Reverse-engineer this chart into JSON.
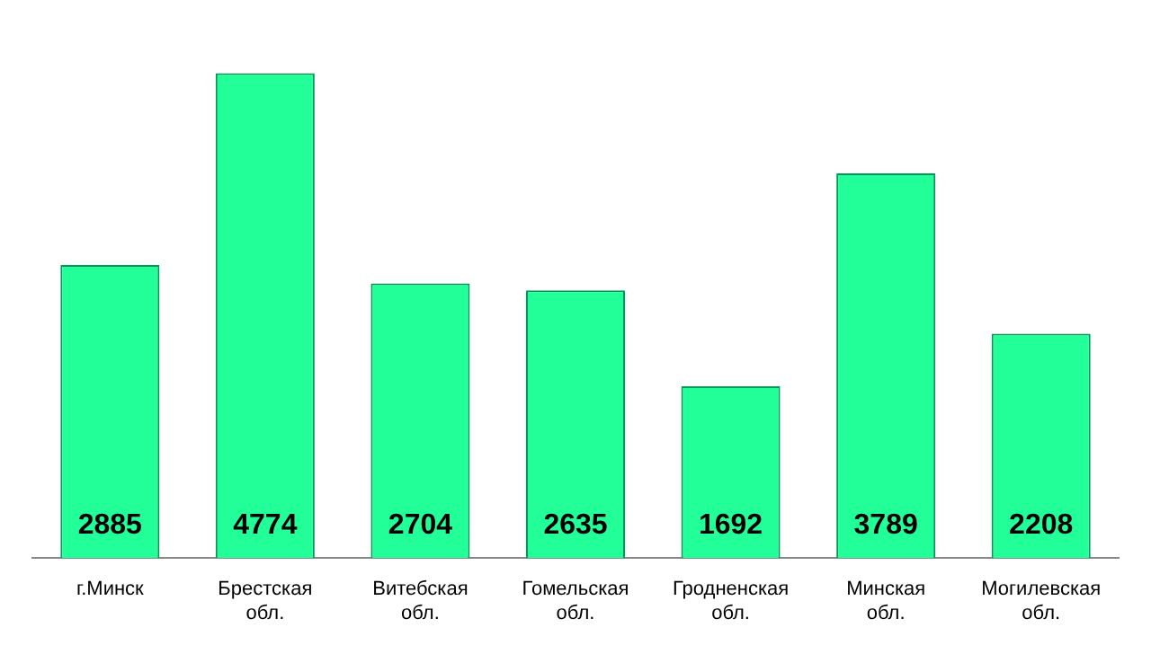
{
  "chart_data": {
    "type": "bar",
    "categories": [
      "г.Минск",
      "Брестская обл.",
      "Витебская обл.",
      "Гомельская обл.",
      "Гродненская обл.",
      "Минская обл.",
      "Могилевская обл."
    ],
    "values": [
      2885,
      4774,
      2704,
      2635,
      1692,
      3789,
      2208
    ],
    "color": "#22ff99",
    "data_labels": true,
    "grid": false,
    "legend": false
  }
}
